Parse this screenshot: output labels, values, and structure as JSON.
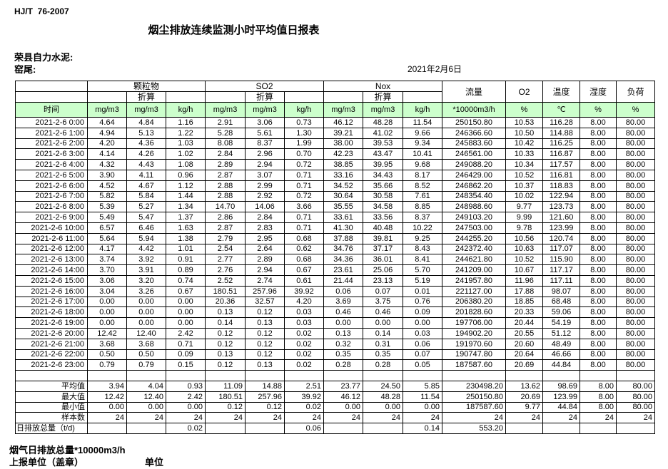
{
  "meta": {
    "standard": "HJ/T  76-2007",
    "title": "烟尘排放连续监测小时平均值日报表",
    "company": "荣县自力水泥:",
    "site": "窑尾:",
    "date": "2021年2月6日"
  },
  "colors": {
    "header_green": "#ccffcc",
    "border": "#000000"
  },
  "table": {
    "time_header": "时间",
    "groups": [
      "颗粒物",
      "SO2",
      "Nox"
    ],
    "converted_label": "折算",
    "flow_header": "流量",
    "o2_header": "O2",
    "temp_header": "温度",
    "humidity_header": "湿度",
    "load_header": "负荷",
    "unit_row": [
      "mg/m3",
      "mg/m3",
      "kg/h",
      "mg/m3",
      "mg/m3",
      "kg/h",
      "mg/m3",
      "mg/m3",
      "kg/h",
      "*10000m3/h",
      "%",
      "℃",
      "%",
      "%"
    ],
    "rows": [
      {
        "time": "2021-2-6 0:00",
        "values": [
          "4.64",
          "4.84",
          "1.16",
          "2.91",
          "3.06",
          "0.73",
          "46.12",
          "48.28",
          "11.54",
          "250150.80",
          "10.53",
          "116.28",
          "8.00",
          "80.00"
        ]
      },
      {
        "time": "2021-2-6 1:00",
        "values": [
          "4.94",
          "5.13",
          "1.22",
          "5.28",
          "5.61",
          "1.30",
          "39.21",
          "41.02",
          "9.66",
          "246366.60",
          "10.50",
          "114.88",
          "8.00",
          "80.00"
        ]
      },
      {
        "time": "2021-2-6 2:00",
        "values": [
          "4.20",
          "4.36",
          "1.03",
          "8.08",
          "8.37",
          "1.99",
          "38.00",
          "39.53",
          "9.34",
          "245883.60",
          "10.42",
          "116.25",
          "8.00",
          "80.00"
        ]
      },
      {
        "time": "2021-2-6 3:00",
        "values": [
          "4.14",
          "4.26",
          "1.02",
          "2.84",
          "2.96",
          "0.70",
          "42.23",
          "43.47",
          "10.41",
          "246561.00",
          "10.33",
          "116.87",
          "8.00",
          "80.00"
        ]
      },
      {
        "time": "2021-2-6 4:00",
        "values": [
          "4.32",
          "4.43",
          "1.08",
          "2.89",
          "2.94",
          "0.72",
          "38.85",
          "39.95",
          "9.68",
          "249088.20",
          "10.34",
          "117.57",
          "8.00",
          "80.00"
        ]
      },
      {
        "time": "2021-2-6 5:00",
        "values": [
          "3.90",
          "4.11",
          "0.96",
          "2.87",
          "3.07",
          "0.71",
          "33.16",
          "34.43",
          "8.17",
          "246429.00",
          "10.52",
          "116.81",
          "8.00",
          "80.00"
        ]
      },
      {
        "time": "2021-2-6 6:00",
        "values": [
          "4.52",
          "4.67",
          "1.12",
          "2.88",
          "2.99",
          "0.71",
          "34.52",
          "35.66",
          "8.52",
          "246862.20",
          "10.37",
          "118.83",
          "8.00",
          "80.00"
        ]
      },
      {
        "time": "2021-2-6 7:00",
        "values": [
          "5.82",
          "5.84",
          "1.44",
          "2.88",
          "2.92",
          "0.72",
          "30.64",
          "30.58",
          "7.61",
          "248354.40",
          "10.02",
          "122.94",
          "8.00",
          "80.00"
        ]
      },
      {
        "time": "2021-2-6 8:00",
        "values": [
          "5.39",
          "5.27",
          "1.34",
          "14.70",
          "14.06",
          "3.66",
          "35.55",
          "34.58",
          "8.85",
          "248988.60",
          "9.77",
          "123.73",
          "8.00",
          "80.00"
        ]
      },
      {
        "time": "2021-2-6 9:00",
        "values": [
          "5.49",
          "5.47",
          "1.37",
          "2.86",
          "2.84",
          "0.71",
          "33.61",
          "33.56",
          "8.37",
          "249103.20",
          "9.99",
          "121.60",
          "8.00",
          "80.00"
        ]
      },
      {
        "time": "2021-2-6 10:00",
        "values": [
          "6.57",
          "6.46",
          "1.63",
          "2.87",
          "2.83",
          "0.71",
          "41.30",
          "40.48",
          "10.22",
          "247503.00",
          "9.78",
          "123.99",
          "8.00",
          "80.00"
        ]
      },
      {
        "time": "2021-2-6 11:00",
        "values": [
          "5.64",
          "5.94",
          "1.38",
          "2.79",
          "2.95",
          "0.68",
          "37.88",
          "39.81",
          "9.25",
          "244255.20",
          "10.56",
          "120.74",
          "8.00",
          "80.00"
        ]
      },
      {
        "time": "2021-2-6 12:00",
        "values": [
          "4.17",
          "4.42",
          "1.01",
          "2.54",
          "2.64",
          "0.62",
          "34.76",
          "37.17",
          "8.43",
          "242372.40",
          "10.63",
          "117.07",
          "8.00",
          "80.00"
        ]
      },
      {
        "time": "2021-2-6 13:00",
        "values": [
          "3.74",
          "3.92",
          "0.91",
          "2.77",
          "2.89",
          "0.68",
          "34.36",
          "36.01",
          "8.41",
          "244621.80",
          "10.52",
          "115.90",
          "8.00",
          "80.00"
        ]
      },
      {
        "time": "2021-2-6 14:00",
        "values": [
          "3.70",
          "3.91",
          "0.89",
          "2.76",
          "2.94",
          "0.67",
          "23.61",
          "25.06",
          "5.70",
          "241209.00",
          "10.67",
          "117.17",
          "8.00",
          "80.00"
        ]
      },
      {
        "time": "2021-2-6 15:00",
        "values": [
          "3.06",
          "3.20",
          "0.74",
          "2.52",
          "2.74",
          "0.61",
          "21.44",
          "23.13",
          "5.19",
          "241957.80",
          "11.96",
          "117.11",
          "8.00",
          "80.00"
        ]
      },
      {
        "time": "2021-2-6 16:00",
        "values": [
          "3.04",
          "3.26",
          "0.67",
          "180.51",
          "257.96",
          "39.92",
          "0.06",
          "0.07",
          "0.01",
          "221127.00",
          "17.88",
          "98.07",
          "8.00",
          "80.00"
        ]
      },
      {
        "time": "2021-2-6 17:00",
        "values": [
          "0.00",
          "0.00",
          "0.00",
          "20.36",
          "32.57",
          "4.20",
          "3.69",
          "3.75",
          "0.76",
          "206380.20",
          "18.85",
          "68.48",
          "8.00",
          "80.00"
        ]
      },
      {
        "time": "2021-2-6 18:00",
        "values": [
          "0.00",
          "0.00",
          "0.00",
          "0.13",
          "0.12",
          "0.03",
          "0.46",
          "0.46",
          "0.09",
          "201828.60",
          "20.33",
          "59.06",
          "8.00",
          "80.00"
        ]
      },
      {
        "time": "2021-2-6 19:00",
        "values": [
          "0.00",
          "0.00",
          "0.00",
          "0.14",
          "0.13",
          "0.03",
          "0.00",
          "0.00",
          "0.00",
          "197706.00",
          "20.44",
          "54.19",
          "8.00",
          "80.00"
        ]
      },
      {
        "time": "2021-2-6 20:00",
        "values": [
          "12.42",
          "12.40",
          "2.42",
          "0.12",
          "0.12",
          "0.02",
          "0.13",
          "0.14",
          "0.03",
          "194902.20",
          "20.55",
          "51.12",
          "8.00",
          "80.00"
        ]
      },
      {
        "time": "2021-2-6 21:00",
        "values": [
          "3.68",
          "3.68",
          "0.71",
          "0.12",
          "0.12",
          "0.02",
          "0.32",
          "0.31",
          "0.06",
          "191970.60",
          "20.60",
          "48.49",
          "8.00",
          "80.00"
        ]
      },
      {
        "time": "2021-2-6 22:00",
        "values": [
          "0.50",
          "0.50",
          "0.09",
          "0.13",
          "0.12",
          "0.02",
          "0.35",
          "0.35",
          "0.07",
          "190747.80",
          "20.64",
          "46.66",
          "8.00",
          "80.00"
        ]
      },
      {
        "time": "2021-2-6 23:00",
        "values": [
          "0.79",
          "0.79",
          "0.15",
          "0.12",
          "0.13",
          "0.02",
          "0.28",
          "0.28",
          "0.05",
          "187587.60",
          "20.69",
          "44.84",
          "8.00",
          "80.00"
        ]
      }
    ],
    "summary": [
      {
        "label": "平均值",
        "align": "right",
        "values": [
          "3.94",
          "4.04",
          "0.93",
          "11.09",
          "14.88",
          "2.51",
          "23.77",
          "24.50",
          "5.85",
          "230498.20",
          "13.62",
          "98.69",
          "8.00",
          "80.00"
        ]
      },
      {
        "label": "最大值",
        "align": "right",
        "values": [
          "12.42",
          "12.40",
          "2.42",
          "180.51",
          "257.96",
          "39.92",
          "46.12",
          "48.28",
          "11.54",
          "250150.80",
          "20.69",
          "123.99",
          "8.00",
          "80.00"
        ]
      },
      {
        "label": "最小值",
        "align": "right",
        "values": [
          "0.00",
          "0.00",
          "0.00",
          "0.12",
          "0.12",
          "0.02",
          "0.00",
          "0.00",
          "0.00",
          "187587.60",
          "9.77",
          "44.84",
          "8.00",
          "80.00"
        ]
      },
      {
        "label": "样本数",
        "align": "right",
        "values": [
          "24",
          "24",
          "24",
          "24",
          "24",
          "24",
          "24",
          "24",
          "24",
          "24",
          "24",
          "24",
          "24",
          "24"
        ]
      },
      {
        "label": "日排放总量（t/d)",
        "align": "left",
        "values": [
          "",
          "",
          "0.02",
          "",
          "",
          "0.06",
          "",
          "",
          "0.14",
          "553.20",
          "",
          "",
          "",
          ""
        ]
      }
    ]
  },
  "footer": {
    "flow_total_label": "烟气日排放总量*10000m3/h",
    "report_unit_label": "上报单位（盖章）",
    "unit_label": "单位"
  }
}
